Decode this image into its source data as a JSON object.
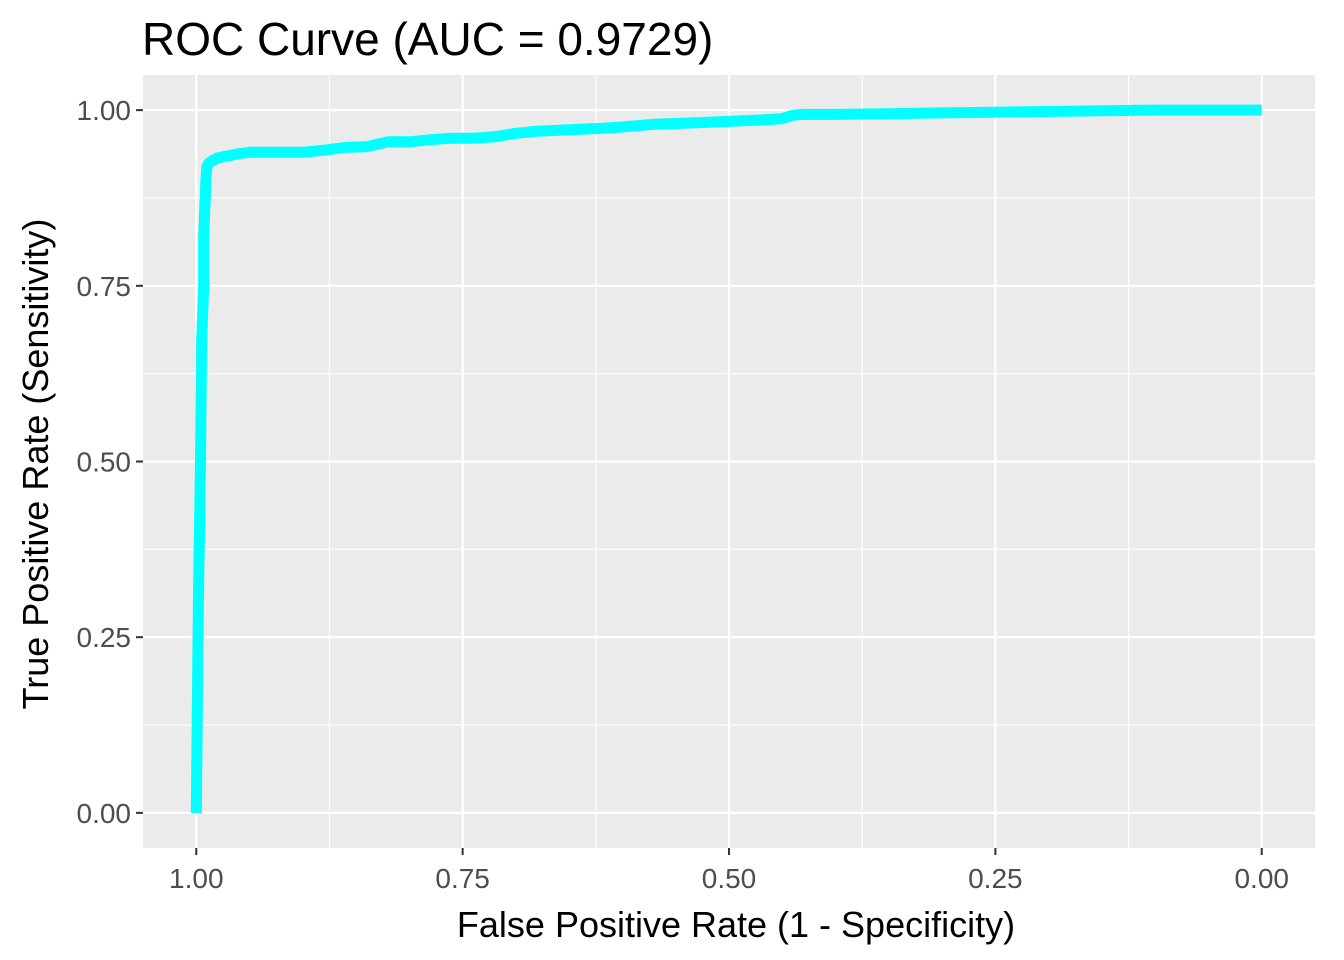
{
  "chart_data": {
    "type": "line",
    "title": "ROC Curve (AUC = 0.9729)",
    "xlabel": "False Positive Rate (1 - Specificity)",
    "ylabel": "True Positive Rate (Sensitivity)",
    "x_reversed": true,
    "xlim": [
      1.05,
      -0.05
    ],
    "ylim": [
      -0.05,
      1.05
    ],
    "x_ticks": [
      1.0,
      0.75,
      0.5,
      0.25,
      0.0
    ],
    "x_tick_labels": [
      "1.00",
      "0.75",
      "0.50",
      "0.25",
      "0.00"
    ],
    "y_ticks": [
      0.0,
      0.25,
      0.5,
      0.75,
      1.0
    ],
    "y_tick_labels": [
      "0.00",
      "0.25",
      "0.50",
      "0.75",
      "1.00"
    ],
    "grid": true,
    "background": "#ebebeb",
    "series": [
      {
        "color": "#00ffff",
        "x": [
          1.0,
          0.998,
          0.996,
          0.995,
          0.993,
          0.993,
          0.991,
          0.99,
          0.988,
          0.985,
          0.98,
          0.97,
          0.96,
          0.95,
          0.93,
          0.9,
          0.88,
          0.86,
          0.84,
          0.82,
          0.8,
          0.78,
          0.76,
          0.74,
          0.72,
          0.7,
          0.68,
          0.65,
          0.62,
          0.6,
          0.57,
          0.53,
          0.5,
          0.47,
          0.45,
          0.44,
          0.43,
          0.4,
          0.35,
          0.3,
          0.25,
          0.2,
          0.15,
          0.1,
          0.05,
          0.0
        ],
        "y": [
          0.0,
          0.3,
          0.5,
          0.67,
          0.75,
          0.82,
          0.9,
          0.92,
          0.925,
          0.928,
          0.932,
          0.935,
          0.938,
          0.94,
          0.94,
          0.94,
          0.943,
          0.947,
          0.948,
          0.955,
          0.955,
          0.958,
          0.96,
          0.96,
          0.962,
          0.967,
          0.97,
          0.972,
          0.974,
          0.976,
          0.98,
          0.982,
          0.984,
          0.986,
          0.988,
          0.993,
          0.994,
          0.994,
          0.995,
          0.996,
          0.997,
          0.998,
          0.999,
          1.0,
          1.0,
          1.0
        ]
      }
    ]
  }
}
